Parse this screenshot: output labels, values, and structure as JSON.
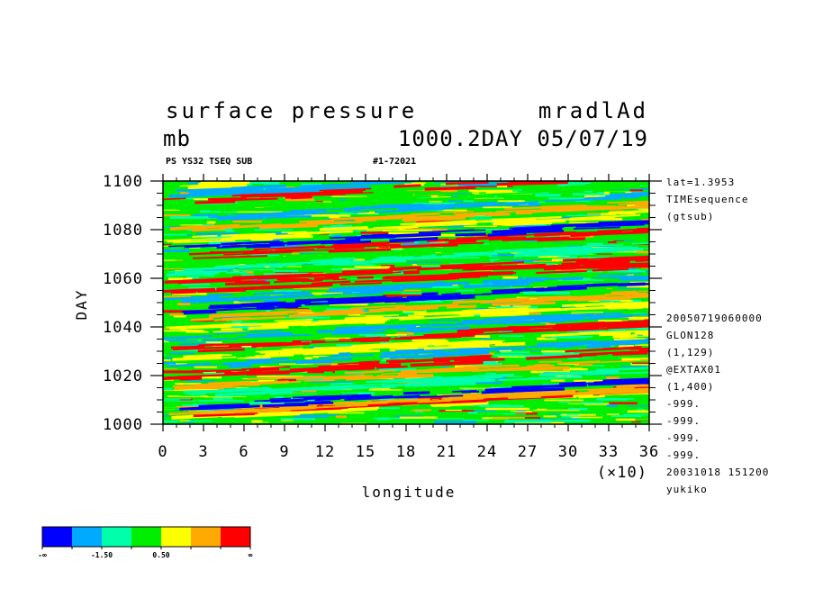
{
  "header": {
    "variable_title": "surface pressure",
    "experiment": "mradlAd",
    "units": "mb",
    "time_date": "1000.2DAY 05/07/19",
    "subtitle_left": "PS YS32 TSEQ SUB",
    "subtitle_right": "#1-72021"
  },
  "side_info": {
    "top": [
      "lat=1.3953",
      "TIMEsequence",
      "(gtsub)"
    ],
    "bottom": [
      "20050719060000",
      "GLON128",
      "(1,129)",
      "@EXTAX01",
      "(1,400)",
      "-999.",
      "-999.",
      "-999.",
      "-999.",
      "20031018 151200",
      "yukiko"
    ]
  },
  "colorbar": {
    "colors": [
      "#0000ff",
      "#00aaff",
      "#00ffaa",
      "#00ee00",
      "#ffff00",
      "#ffaa00",
      "#ff0000"
    ],
    "labels": [
      "-∞",
      "-1.50",
      "0.50",
      "∞"
    ]
  },
  "chart_data": {
    "type": "heatmap",
    "title": "surface pressure",
    "xlabel": "longitude",
    "ylabel": "DAY",
    "x_multiplier_label": "(×10)",
    "xlim": [
      0,
      36
    ],
    "ylim": [
      1000,
      1100
    ],
    "x_ticks": [
      "0",
      "3",
      "6",
      "9",
      "12",
      "15",
      "18",
      "21",
      "24",
      "27",
      "30",
      "33",
      "36"
    ],
    "y_ticks": [
      "1000",
      "1020",
      "1040",
      "1060",
      "1080",
      "1100"
    ],
    "color_scale": [
      "#0000ff",
      "#00aaff",
      "#00ffaa",
      "#00ee00",
      "#ffff00",
      "#ffaa00",
      "#ff0000"
    ],
    "bands": [
      {
        "day": 1003,
        "level": 4
      },
      {
        "day": 1004,
        "level": 6
      },
      {
        "day": 1005,
        "level": 5
      },
      {
        "day": 1007,
        "level": 0
      },
      {
        "day": 1012,
        "level": 2
      },
      {
        "day": 1016,
        "level": 5
      },
      {
        "day": 1020,
        "level": 6
      },
      {
        "day": 1024,
        "level": 1
      },
      {
        "day": 1027,
        "level": 4
      },
      {
        "day": 1031,
        "level": 6
      },
      {
        "day": 1035,
        "level": 1
      },
      {
        "day": 1039,
        "level": 4
      },
      {
        "day": 1043,
        "level": 5
      },
      {
        "day": 1047,
        "level": 0
      },
      {
        "day": 1051,
        "level": 1
      },
      {
        "day": 1055,
        "level": 6
      },
      {
        "day": 1058,
        "level": 6
      },
      {
        "day": 1063,
        "level": 2
      },
      {
        "day": 1066,
        "level": 3
      },
      {
        "day": 1069,
        "level": 6
      },
      {
        "day": 1072,
        "level": 0
      },
      {
        "day": 1076,
        "level": 4
      },
      {
        "day": 1080,
        "level": 5
      },
      {
        "day": 1084,
        "level": 1
      },
      {
        "day": 1088,
        "level": 3
      },
      {
        "day": 1092,
        "level": 6
      },
      {
        "day": 1095,
        "level": 1
      },
      {
        "day": 1098,
        "level": 4
      }
    ]
  }
}
